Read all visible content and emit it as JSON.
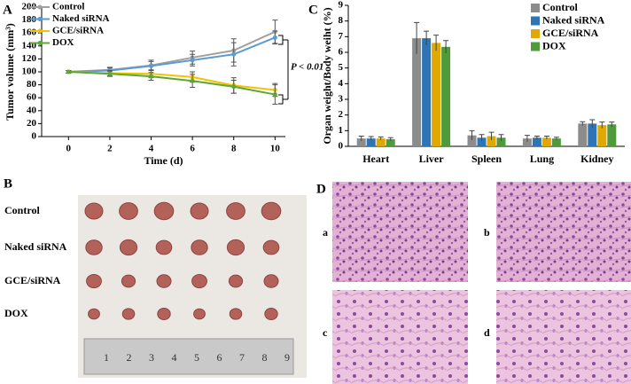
{
  "chart_data": [
    {
      "type": "line",
      "panel_label": "A",
      "y_label": "Tumor volume (mm³)",
      "x_label": "Time (d)",
      "annotation": "P < 0.01",
      "x": [
        0,
        2,
        4,
        6,
        8,
        10
      ],
      "xlim": [
        -1.3,
        10.5
      ],
      "xticks": [
        0,
        2,
        4,
        6,
        8,
        10
      ],
      "ylim": [
        0,
        200
      ],
      "yticks": [
        0,
        20,
        40,
        60,
        80,
        100,
        120,
        140,
        160,
        180,
        200
      ],
      "legend": "upper left",
      "series": [
        {
          "name": "Control",
          "color": "#a0a0a0",
          "values": [
            100,
            103,
            110,
            122,
            133,
            162
          ],
          "errors": [
            2,
            4,
            8,
            10,
            18,
            18
          ]
        },
        {
          "name": "Naked siRNA",
          "color": "#5b9bd5",
          "values": [
            100,
            102,
            109,
            118,
            127,
            153
          ],
          "errors": [
            2,
            4,
            7,
            9,
            18,
            10
          ]
        },
        {
          "name": "GCE/siRNA",
          "color": "#f2c200",
          "values": [
            100,
            98,
            97,
            92,
            79,
            72
          ],
          "errors": [
            2,
            4,
            6,
            8,
            12,
            10
          ]
        },
        {
          "name": "DOX",
          "color": "#5ca832",
          "values": [
            100,
            97,
            93,
            86,
            77,
            65
          ],
          "errors": [
            2,
            4,
            6,
            10,
            10,
            15
          ]
        }
      ]
    },
    {
      "type": "bar",
      "panel_label": "C",
      "y_label": "Organ weight/Body weiht (%)",
      "categories": [
        "Heart",
        "Liver",
        "Spleen",
        "Lung",
        "Kidney"
      ],
      "ylim": [
        0,
        9
      ],
      "yticks": [
        0,
        1,
        2,
        3,
        4,
        5,
        6,
        7,
        8,
        9
      ],
      "legend": "upper right",
      "series": [
        {
          "name": "Control",
          "color": "#8c8c8c",
          "values": [
            0.5,
            6.9,
            0.7,
            0.5,
            1.45
          ],
          "errors": [
            0.15,
            1.0,
            0.3,
            0.2,
            0.12
          ]
        },
        {
          "name": "Naked siRNA",
          "color": "#2e75b6",
          "values": [
            0.5,
            6.9,
            0.55,
            0.55,
            1.45
          ],
          "errors": [
            0.12,
            0.45,
            0.2,
            0.1,
            0.25
          ]
        },
        {
          "name": "GCE/siRNA",
          "color": "#e0a800",
          "values": [
            0.5,
            6.6,
            0.65,
            0.55,
            1.35
          ],
          "errors": [
            0.1,
            0.5,
            0.25,
            0.1,
            0.2
          ]
        },
        {
          "name": "DOX",
          "color": "#4f9a3a",
          "values": [
            0.45,
            6.35,
            0.55,
            0.5,
            1.4
          ],
          "errors": [
            0.1,
            0.4,
            0.2,
            0.08,
            0.15
          ]
        }
      ]
    }
  ],
  "panel_b": {
    "label": "B",
    "rows": [
      "Control",
      "Naked siRNA",
      "GCE/siRNA",
      "DOX"
    ],
    "ruler_labels": [
      "1",
      "2",
      "3",
      "4",
      "5",
      "6",
      "7",
      "8",
      "9"
    ]
  },
  "panel_d": {
    "label": "D",
    "images": [
      "a",
      "b",
      "c",
      "d"
    ]
  }
}
